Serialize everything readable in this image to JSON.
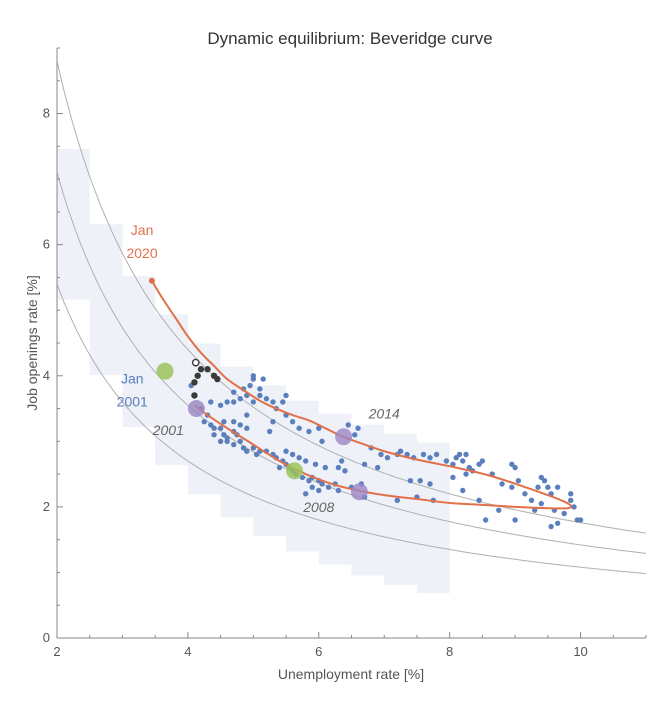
{
  "chart_data": {
    "type": "scatter",
    "title": "Dynamic equilibrium: Beveridge curve",
    "xlabel": "Unemployment rate [%]",
    "ylabel": "Job openings rate [%]",
    "xlim": [
      2,
      11
    ],
    "ylim": [
      0,
      9
    ],
    "x_ticks": [
      2,
      4,
      6,
      8,
      10
    ],
    "y_ticks": [
      0,
      2,
      4,
      6,
      8
    ],
    "grid": false,
    "colors": {
      "scatter": "#5b7fbd",
      "orange": "#e2704a",
      "green": "#9bc35a",
      "purple": "#9b87c2",
      "dark": "#3a3a3a",
      "reference": "#b0b0b0",
      "band": "#eef1f7"
    },
    "reference_curves_k": [
      10.8,
      14.2,
      17.6
    ],
    "scatter_points": [
      [
        4.05,
        3.85
      ],
      [
        4.1,
        3.7
      ],
      [
        4.2,
        3.5
      ],
      [
        4.3,
        3.4
      ],
      [
        4.25,
        3.3
      ],
      [
        4.35,
        3.25
      ],
      [
        4.4,
        3.2
      ],
      [
        4.5,
        3.2
      ],
      [
        4.55,
        3.1
      ],
      [
        4.6,
        3.05
      ],
      [
        4.4,
        3.1
      ],
      [
        4.5,
        3.0
      ],
      [
        4.6,
        3.0
      ],
      [
        4.7,
        3.15
      ],
      [
        4.75,
        3.1
      ],
      [
        4.8,
        3.0
      ],
      [
        4.7,
        2.95
      ],
      [
        4.85,
        2.9
      ],
      [
        4.9,
        2.85
      ],
      [
        5.0,
        2.9
      ],
      [
        5.05,
        2.8
      ],
      [
        5.1,
        2.85
      ],
      [
        4.8,
        3.25
      ],
      [
        4.7,
        3.3
      ],
      [
        4.55,
        3.3
      ],
      [
        4.9,
        3.2
      ],
      [
        4.35,
        3.6
      ],
      [
        4.5,
        3.55
      ],
      [
        4.6,
        3.6
      ],
      [
        4.7,
        3.6
      ],
      [
        4.8,
        3.65
      ],
      [
        4.9,
        3.7
      ],
      [
        5.0,
        3.6
      ],
      [
        5.1,
        3.7
      ],
      [
        5.2,
        3.65
      ],
      [
        4.7,
        3.75
      ],
      [
        4.85,
        3.8
      ],
      [
        4.95,
        3.85
      ],
      [
        5.0,
        3.95
      ],
      [
        5.1,
        3.8
      ],
      [
        5.3,
        3.6
      ],
      [
        5.45,
        3.6
      ],
      [
        5.5,
        3.7
      ],
      [
        5.35,
        3.5
      ],
      [
        5.0,
        4.0
      ],
      [
        5.15,
        3.95
      ],
      [
        5.2,
        2.85
      ],
      [
        5.3,
        2.8
      ],
      [
        5.35,
        2.75
      ],
      [
        5.45,
        2.7
      ],
      [
        5.5,
        2.65
      ],
      [
        5.55,
        2.6
      ],
      [
        5.6,
        2.55
      ],
      [
        5.65,
        2.5
      ],
      [
        5.75,
        2.45
      ],
      [
        5.85,
        2.4
      ],
      [
        5.9,
        2.45
      ],
      [
        6.0,
        2.4
      ],
      [
        6.05,
        2.35
      ],
      [
        6.15,
        2.3
      ],
      [
        6.25,
        2.35
      ],
      [
        5.5,
        2.85
      ],
      [
        5.6,
        2.8
      ],
      [
        5.7,
        2.75
      ],
      [
        5.8,
        2.7
      ],
      [
        5.95,
        2.65
      ],
      [
        6.1,
        2.6
      ],
      [
        5.85,
        3.15
      ],
      [
        6.0,
        3.2
      ],
      [
        5.7,
        3.2
      ],
      [
        5.6,
        3.3
      ],
      [
        5.5,
        3.4
      ],
      [
        5.9,
        2.3
      ],
      [
        6.3,
        2.25
      ],
      [
        6.5,
        2.3
      ],
      [
        6.45,
        3.25
      ],
      [
        6.55,
        3.1
      ],
      [
        6.6,
        3.2
      ],
      [
        6.8,
        2.9
      ],
      [
        6.95,
        2.8
      ],
      [
        7.05,
        2.75
      ],
      [
        6.7,
        2.65
      ],
      [
        6.9,
        2.6
      ],
      [
        7.25,
        2.85
      ],
      [
        7.35,
        2.8
      ],
      [
        7.45,
        2.75
      ],
      [
        7.6,
        2.8
      ],
      [
        7.7,
        2.75
      ],
      [
        7.8,
        2.8
      ],
      [
        7.95,
        2.7
      ],
      [
        8.05,
        2.65
      ],
      [
        8.1,
        2.75
      ],
      [
        8.15,
        2.8
      ],
      [
        8.2,
        2.7
      ],
      [
        8.3,
        2.6
      ],
      [
        8.35,
        2.55
      ],
      [
        8.45,
        2.65
      ],
      [
        8.5,
        2.7
      ],
      [
        8.25,
        2.5
      ],
      [
        8.05,
        2.45
      ],
      [
        7.7,
        2.35
      ],
      [
        7.55,
        2.4
      ],
      [
        7.4,
        2.4
      ],
      [
        7.2,
        2.1
      ],
      [
        6.7,
        2.15
      ],
      [
        6.65,
        2.35
      ],
      [
        8.65,
        2.5
      ],
      [
        8.8,
        2.35
      ],
      [
        8.95,
        2.3
      ],
      [
        9.0,
        2.6
      ],
      [
        9.05,
        2.4
      ],
      [
        9.15,
        2.2
      ],
      [
        9.25,
        2.1
      ],
      [
        9.3,
        1.95
      ],
      [
        9.45,
        2.4
      ],
      [
        9.5,
        2.3
      ],
      [
        9.55,
        2.2
      ],
      [
        9.4,
        2.05
      ],
      [
        9.6,
        1.95
      ],
      [
        9.65,
        2.3
      ],
      [
        9.75,
        1.9
      ],
      [
        9.85,
        2.1
      ],
      [
        9.9,
        2.0
      ],
      [
        9.95,
        1.8
      ],
      [
        10.0,
        1.8
      ],
      [
        9.65,
        1.75
      ],
      [
        9.55,
        1.7
      ],
      [
        9.0,
        1.8
      ],
      [
        8.55,
        1.8
      ],
      [
        8.95,
        2.65
      ],
      [
        9.85,
        2.2
      ],
      [
        8.2,
        2.25
      ],
      [
        8.45,
        2.1
      ],
      [
        7.5,
        2.15
      ],
      [
        7.75,
        2.1
      ],
      [
        6.3,
        2.6
      ],
      [
        6.35,
        2.7
      ],
      [
        6.4,
        2.55
      ],
      [
        5.3,
        3.3
      ],
      [
        5.25,
        3.15
      ],
      [
        6.0,
        2.25
      ],
      [
        5.8,
        2.2
      ],
      [
        4.9,
        3.4
      ],
      [
        5.4,
        2.6
      ],
      [
        6.05,
        3.0
      ],
      [
        8.25,
        2.8
      ],
      [
        7.2,
        2.8
      ],
      [
        9.4,
        2.45
      ],
      [
        9.35,
        2.3
      ],
      [
        8.75,
        1.95
      ]
    ],
    "dark_points": [
      [
        4.1,
        3.7
      ],
      [
        4.1,
        3.9
      ],
      [
        4.15,
        4.0
      ],
      [
        4.2,
        4.1
      ],
      [
        4.3,
        4.1
      ],
      [
        4.4,
        4.0
      ],
      [
        4.45,
        3.95
      ]
    ],
    "open_point": [
      4.12,
      4.2
    ],
    "orange_path": [
      [
        3.45,
        5.45
      ],
      [
        3.6,
        5.2
      ],
      [
        3.8,
        4.9
      ],
      [
        4.0,
        4.6
      ],
      [
        4.2,
        4.35
      ],
      [
        4.4,
        4.15
      ],
      [
        4.6,
        3.95
      ],
      [
        4.85,
        3.78
      ],
      [
        5.1,
        3.62
      ],
      [
        5.35,
        3.5
      ],
      [
        5.6,
        3.4
      ],
      [
        5.85,
        3.32
      ],
      [
        6.1,
        3.2
      ],
      [
        6.35,
        3.08
      ],
      [
        6.7,
        2.95
      ],
      [
        7.1,
        2.82
      ],
      [
        7.6,
        2.7
      ],
      [
        8.1,
        2.6
      ],
      [
        8.6,
        2.48
      ],
      [
        9.1,
        2.32
      ],
      [
        9.5,
        2.18
      ],
      [
        9.75,
        2.08
      ],
      [
        9.85,
        2.02
      ],
      [
        9.8,
        1.98
      ],
      [
        9.5,
        1.98
      ],
      [
        9.0,
        2.0
      ],
      [
        8.5,
        2.03
      ],
      [
        8.0,
        2.06
      ],
      [
        7.5,
        2.12
      ],
      [
        7.0,
        2.18
      ],
      [
        6.6,
        2.25
      ],
      [
        6.2,
        2.35
      ],
      [
        5.8,
        2.5
      ],
      [
        5.4,
        2.7
      ],
      [
        5.0,
        2.95
      ],
      [
        4.6,
        3.2
      ],
      [
        4.3,
        3.4
      ],
      [
        4.1,
        3.55
      ]
    ],
    "orange_start_point": [
      3.45,
      5.45
    ],
    "green_points": [
      [
        3.65,
        4.07
      ],
      [
        5.63,
        2.55
      ]
    ],
    "purple_points": [
      [
        4.13,
        3.5
      ],
      [
        6.38,
        3.07
      ],
      [
        6.62,
        2.23
      ]
    ],
    "annotations": [
      {
        "text": "Jan",
        "x": 3.3,
        "y": 6.15,
        "color": "#e2704a",
        "italic": false
      },
      {
        "text": "2020",
        "x": 3.3,
        "y": 5.8,
        "color": "#e2704a",
        "italic": false
      },
      {
        "text": "Jan",
        "x": 3.15,
        "y": 3.88,
        "color": "#5b7fbd",
        "italic": false
      },
      {
        "text": "2001",
        "x": 3.15,
        "y": 3.53,
        "color": "#5b7fbd",
        "italic": false
      },
      {
        "text": "2001",
        "x": 3.7,
        "y": 3.1,
        "color": "#666666",
        "italic": true
      },
      {
        "text": "2014",
        "x": 7.0,
        "y": 3.35,
        "color": "#666666",
        "italic": true
      },
      {
        "text": "2008",
        "x": 6.0,
        "y": 1.92,
        "color": "#666666",
        "italic": true
      }
    ]
  }
}
